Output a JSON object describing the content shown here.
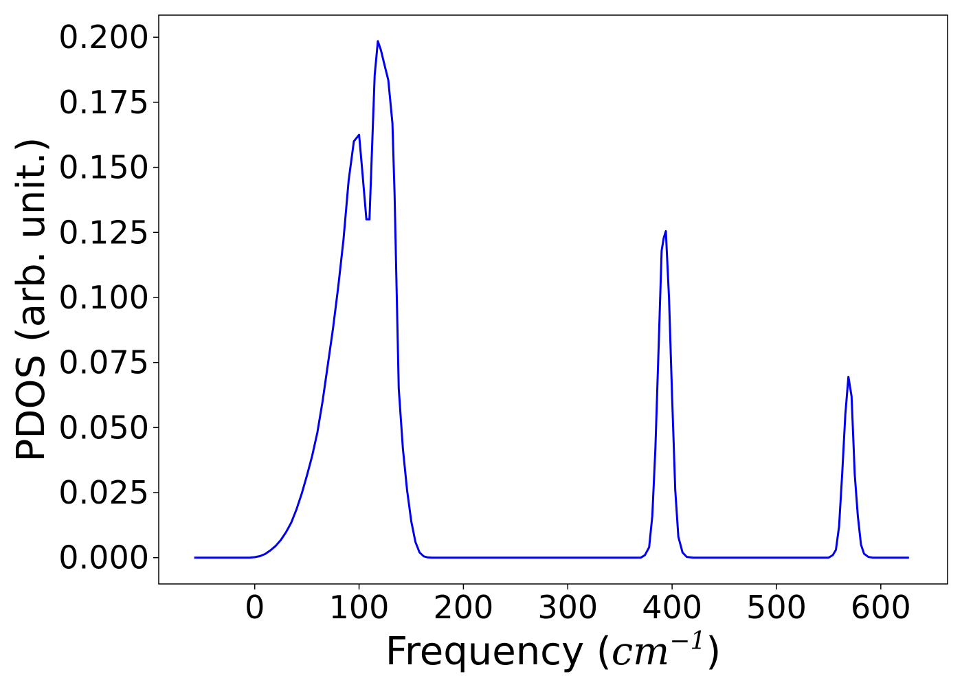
{
  "chart_data": {
    "type": "line",
    "title": "",
    "xlabel_prefix": "Frequency (",
    "xlabel_unit": "cm",
    "xlabel_exp": "−1",
    "xlabel_suffix": ")",
    "ylabel": "PDOS (arb. unit.)",
    "xlim": [
      -92,
      664
    ],
    "ylim": [
      -0.0101,
      0.2085
    ],
    "xticks": [
      0,
      100,
      200,
      300,
      400,
      500,
      600
    ],
    "xtick_labels": [
      "0",
      "100",
      "200",
      "300",
      "400",
      "500",
      "600"
    ],
    "yticks": [
      0.0,
      0.025,
      0.05,
      0.075,
      0.1,
      0.125,
      0.15,
      0.175,
      0.2
    ],
    "ytick_labels": [
      "0.000",
      "0.025",
      "0.050",
      "0.075",
      "0.100",
      "0.125",
      "0.150",
      "0.175",
      "0.200"
    ],
    "grid": false,
    "legend": false,
    "line_color": "#0000ee",
    "series": [
      {
        "x": [
          -58,
          -40,
          -20,
          -5,
          0,
          5,
          10,
          15,
          20,
          25,
          30,
          35,
          40,
          45,
          50,
          55,
          60,
          65,
          70,
          75,
          80,
          85,
          90,
          95,
          97,
          100,
          103,
          107,
          110,
          115,
          118,
          121,
          124,
          128,
          132,
          134,
          138,
          142,
          146,
          150,
          154,
          158,
          162,
          166,
          170,
          180,
          200,
          300,
          360,
          370,
          374,
          378,
          381,
          384,
          387,
          390,
          392,
          394,
          397,
          400,
          403,
          406,
          410,
          414,
          420,
          450,
          500,
          540,
          550,
          554,
          557,
          560,
          563,
          566,
          569,
          572,
          575,
          578,
          581,
          584,
          588,
          592,
          600,
          627
        ],
        "y": [
          0.0,
          0.0,
          0.0,
          0.0,
          0.0002,
          0.0006,
          0.0014,
          0.0028,
          0.0045,
          0.0068,
          0.0098,
          0.0135,
          0.0185,
          0.0245,
          0.0315,
          0.039,
          0.048,
          0.06,
          0.074,
          0.088,
          0.104,
          0.122,
          0.145,
          0.16,
          0.161,
          0.1625,
          0.149,
          0.13,
          0.13,
          0.1855,
          0.1985,
          0.195,
          0.19,
          0.1835,
          0.167,
          0.14,
          0.065,
          0.042,
          0.026,
          0.014,
          0.006,
          0.002,
          0.0005,
          0.0001,
          0.0,
          0.0,
          0.0,
          0.0,
          0.0,
          0.0,
          0.001,
          0.004,
          0.016,
          0.042,
          0.08,
          0.118,
          0.123,
          0.1255,
          0.1,
          0.062,
          0.026,
          0.008,
          0.002,
          0.0003,
          0.0,
          0.0,
          0.0,
          0.0,
          0.0,
          0.001,
          0.003,
          0.012,
          0.032,
          0.055,
          0.0695,
          0.062,
          0.032,
          0.016,
          0.005,
          0.0015,
          0.0003,
          0.0,
          0.0,
          0.0
        ]
      }
    ]
  }
}
